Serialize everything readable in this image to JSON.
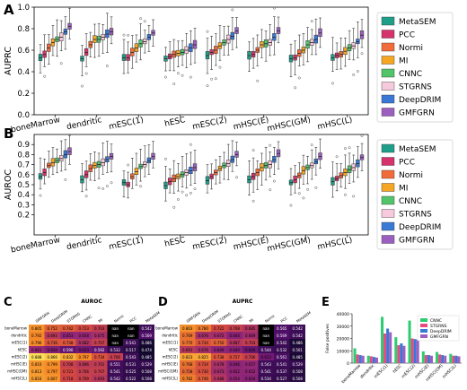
{
  "panel_letters": {
    "A": "A",
    "B": "B",
    "C": "C",
    "D": "D",
    "E": "E"
  },
  "chart_data": [
    {
      "type": "box",
      "panel": "A",
      "ylabel": "AUPRC",
      "ylim": [
        0.0,
        1.0
      ],
      "yticks": [
        0.0,
        0.2,
        0.4,
        0.6,
        0.8,
        1.0
      ],
      "categories": [
        "boneMarrow",
        "dendritic",
        "mESC(1)",
        "hESC",
        "mESC(2)",
        "mHSC(E)",
        "mHSC(GM)",
        "mHSC(L)"
      ],
      "legend_position": "right",
      "series": [
        {
          "name": "MetaSEM",
          "color": "#1f9e89",
          "medians": [
            0.53,
            0.52,
            0.53,
            0.52,
            0.55,
            0.55,
            0.52,
            0.53
          ]
        },
        {
          "name": "PCC",
          "color": "#d6336c",
          "medians": [
            0.56,
            0.58,
            0.53,
            0.54,
            0.58,
            0.56,
            0.53,
            0.55
          ]
        },
        {
          "name": "Normi",
          "color": "#f26b3a",
          "medians": [
            0.62,
            0.65,
            0.58,
            0.56,
            0.6,
            0.6,
            0.57,
            0.56
          ]
        },
        {
          "name": "MI",
          "color": "#f5a623",
          "medians": [
            0.67,
            0.7,
            0.62,
            0.57,
            0.64,
            0.65,
            0.6,
            0.59
          ]
        },
        {
          "name": "CNNC",
          "color": "#52c46a",
          "medians": [
            0.7,
            0.7,
            0.66,
            0.58,
            0.67,
            0.66,
            0.65,
            0.62
          ]
        },
        {
          "name": "STGRNS",
          "color": "#f7c9dc",
          "medians": [
            0.72,
            0.72,
            0.68,
            0.6,
            0.7,
            0.67,
            0.67,
            0.64
          ]
        },
        {
          "name": "DeepDRIM",
          "color": "#3a78d6",
          "medians": [
            0.77,
            0.75,
            0.72,
            0.62,
            0.73,
            0.72,
            0.7,
            0.68
          ]
        },
        {
          "name": "GMFGRN",
          "color": "#9b5fc0",
          "medians": [
            0.82,
            0.77,
            0.76,
            0.65,
            0.78,
            0.78,
            0.76,
            0.74
          ]
        }
      ]
    },
    {
      "type": "box",
      "panel": "B",
      "ylabel": "AUROC",
      "ylim": [
        0.0,
        1.0
      ],
      "yticks": [
        0.2,
        0.3,
        0.4,
        0.5,
        0.6,
        0.7,
        0.8,
        0.9
      ],
      "categories": [
        "boneMarrow",
        "dendritic",
        "mESC(1)",
        "hESC",
        "mESC(2)",
        "mHSC(E)",
        "mHSC(GM)",
        "mHSC(L)"
      ],
      "legend_position": "right",
      "series": [
        {
          "name": "MetaSEM",
          "color": "#1f9e89",
          "medians": [
            0.58,
            0.55,
            0.52,
            0.49,
            0.54,
            0.55,
            0.52,
            0.53
          ]
        },
        {
          "name": "PCC",
          "color": "#d6336c",
          "medians": [
            0.62,
            0.6,
            0.5,
            0.53,
            0.58,
            0.58,
            0.55,
            0.56
          ]
        },
        {
          "name": "Normi",
          "color": "#f26b3a",
          "medians": [
            0.69,
            0.66,
            0.58,
            0.56,
            0.62,
            0.62,
            0.59,
            0.59
          ]
        },
        {
          "name": "MI",
          "color": "#f5a623",
          "medians": [
            0.72,
            0.69,
            0.63,
            0.58,
            0.66,
            0.67,
            0.64,
            0.62
          ]
        },
        {
          "name": "CNNC",
          "color": "#52c46a",
          "medians": [
            0.74,
            0.7,
            0.68,
            0.6,
            0.69,
            0.69,
            0.67,
            0.65
          ]
        },
        {
          "name": "STGRNS",
          "color": "#f7c9dc",
          "medians": [
            0.76,
            0.72,
            0.7,
            0.62,
            0.71,
            0.7,
            0.69,
            0.67
          ]
        },
        {
          "name": "DeepDRIM",
          "color": "#3a78d6",
          "medians": [
            0.8,
            0.75,
            0.74,
            0.64,
            0.75,
            0.75,
            0.73,
            0.71
          ]
        },
        {
          "name": "GMFGRN",
          "color": "#9b5fc0",
          "medians": [
            0.83,
            0.78,
            0.78,
            0.67,
            0.8,
            0.81,
            0.78,
            0.77
          ]
        }
      ]
    },
    {
      "type": "heatmap",
      "panel": "C",
      "title": "AUROC",
      "columns": [
        "GMFGRN",
        "DeepDRIM",
        "STGRNS",
        "CNNC",
        "MI",
        "Normi",
        "PCC",
        "MetaSEM"
      ],
      "rows": [
        "boneMarrow",
        "dendritic",
        "mESC(1)",
        "hESC",
        "mESC(2)",
        "mHSC(E)",
        "mHSC(GM)",
        "mHSC(L)"
      ],
      "values": [
        [
          "0.805",
          "0.752",
          "0.742",
          "0.723",
          "0.703",
          "nan",
          "nan",
          "0.542"
        ],
        [
          "0.792",
          "0.693",
          "0.653",
          "0.658",
          "0.675",
          "nan",
          "nan",
          "0.569"
        ],
        [
          "0.796",
          "0.736",
          "0.738",
          "0.682",
          "0.707",
          "nan",
          "0.541",
          "0.486"
        ],
        [
          "0.661",
          "0.634",
          "0.590",
          "0.613",
          "0.592",
          "0.532",
          "0.517",
          "0.474"
        ],
        [
          "0.888",
          "0.866",
          "0.832",
          "0.797",
          "0.734",
          "0.706",
          "0.543",
          "0.485"
        ],
        [
          "0.810",
          "0.799",
          "0.708",
          "0.696",
          "0.701",
          "0.551",
          "0.531",
          "0.529"
        ],
        [
          "0.813",
          "0.797",
          "0.721",
          "0.706",
          "0.707",
          "0.541",
          "0.525",
          "0.508"
        ],
        [
          "0.816",
          "0.807",
          "0.718",
          "0.709",
          "0.693",
          "0.542",
          "0.522",
          "0.508"
        ]
      ]
    },
    {
      "type": "heatmap",
      "panel": "D",
      "title": "AUPRC",
      "columns": [
        "GMFGRN",
        "DeepDRIM",
        "STGRNS",
        "CNNC",
        "MI",
        "Normi",
        "PCC",
        "MetaSEM"
      ],
      "rows": [
        "boneMarrow",
        "dendritic",
        "mESC(1)",
        "hESC",
        "mESC(2)",
        "mHSC(E)",
        "mHSC(GM)",
        "mHSC(L)"
      ],
      "values": [
        [
          "0.803",
          "0.780",
          "0.722",
          "0.708",
          "0.685",
          "nan",
          "0.565",
          "0.542"
        ],
        [
          "0.769",
          "0.676",
          "0.672",
          "0.644",
          "0.669",
          "nan",
          "0.569",
          "0.542"
        ],
        [
          "0.770",
          "0.734",
          "0.750",
          "0.687",
          "0.703",
          "nan",
          "0.542",
          "0.486"
        ],
        [
          "0.691",
          "0.676",
          "0.649",
          "0.640",
          "0.606",
          "0.544",
          "0.532",
          "0.501"
        ],
        [
          "0.823",
          "0.825",
          "0.738",
          "0.727",
          "0.706",
          "0.613",
          "0.561",
          "0.485"
        ],
        [
          "0.768",
          "0.734",
          "0.678",
          "0.646",
          "0.657",
          "0.543",
          "0.541",
          "0.529"
        ],
        [
          "0.758",
          "0.730",
          "0.673",
          "0.652",
          "0.652",
          "0.541",
          "0.537",
          "0.508"
        ],
        [
          "0.782",
          "0.746",
          "0.688",
          "0.654",
          "0.644",
          "0.534",
          "0.527",
          "0.508"
        ]
      ]
    },
    {
      "type": "bar",
      "panel": "E",
      "ylabel": "False positives",
      "ylim": [
        0,
        40000
      ],
      "yticks": [
        0,
        10000,
        20000,
        30000,
        40000
      ],
      "categories": [
        "boneMarrow",
        "dendritic",
        "mESC(1)",
        "hESC",
        "mESC(2)",
        "mHSC(E)",
        "mHSC(GM)",
        "mHSC(L)"
      ],
      "legend_position": "top-right",
      "series": [
        {
          "name": "CNNC",
          "color": "#2ecc71",
          "values": [
            12000,
            6000,
            37500,
            21000,
            34500,
            9500,
            9000,
            7500
          ]
        },
        {
          "name": "STGRNS",
          "color": "#e84a7f",
          "values": [
            7000,
            5500,
            24000,
            14500,
            20000,
            6500,
            7000,
            6000
          ]
        },
        {
          "name": "DeepDRIM",
          "color": "#3a78d6",
          "values": [
            6500,
            5000,
            28000,
            16000,
            19500,
            6500,
            6500,
            6000
          ]
        },
        {
          "name": "GMFGRN",
          "color": "#9b5fc0",
          "values": [
            6000,
            4500,
            25000,
            14000,
            19000,
            6000,
            6000,
            5500
          ]
        }
      ]
    }
  ]
}
